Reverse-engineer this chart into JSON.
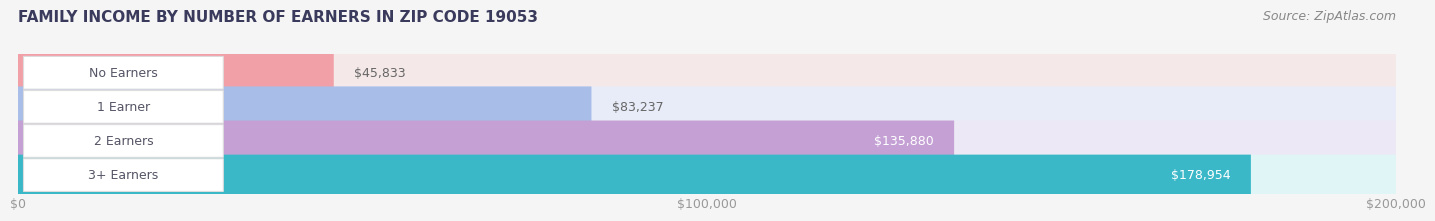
{
  "title": "FAMILY INCOME BY NUMBER OF EARNERS IN ZIP CODE 19053",
  "source": "Source: ZipAtlas.com",
  "categories": [
    "No Earners",
    "1 Earner",
    "2 Earners",
    "3+ Earners"
  ],
  "values": [
    45833,
    83237,
    135880,
    178954
  ],
  "labels": [
    "$45,833",
    "$83,237",
    "$135,880",
    "$178,954"
  ],
  "bar_colors": [
    "#f2a0a8",
    "#a8bde8",
    "#c4a0d4",
    "#3ab8c8"
  ],
  "bar_bg_colors": [
    "#f5e8e8",
    "#e8ecf8",
    "#ede8f5",
    "#e0f5f5"
  ],
  "xlim": [
    0,
    200000
  ],
  "xticks": [
    0,
    100000,
    200000
  ],
  "xticklabels": [
    "$0",
    "$100,000",
    "$200,000"
  ],
  "background_color": "#f5f5f5",
  "title_color": "#3a3a5c",
  "title_fontsize": 11,
  "label_fontsize": 9,
  "tick_fontsize": 9,
  "source_fontsize": 9
}
